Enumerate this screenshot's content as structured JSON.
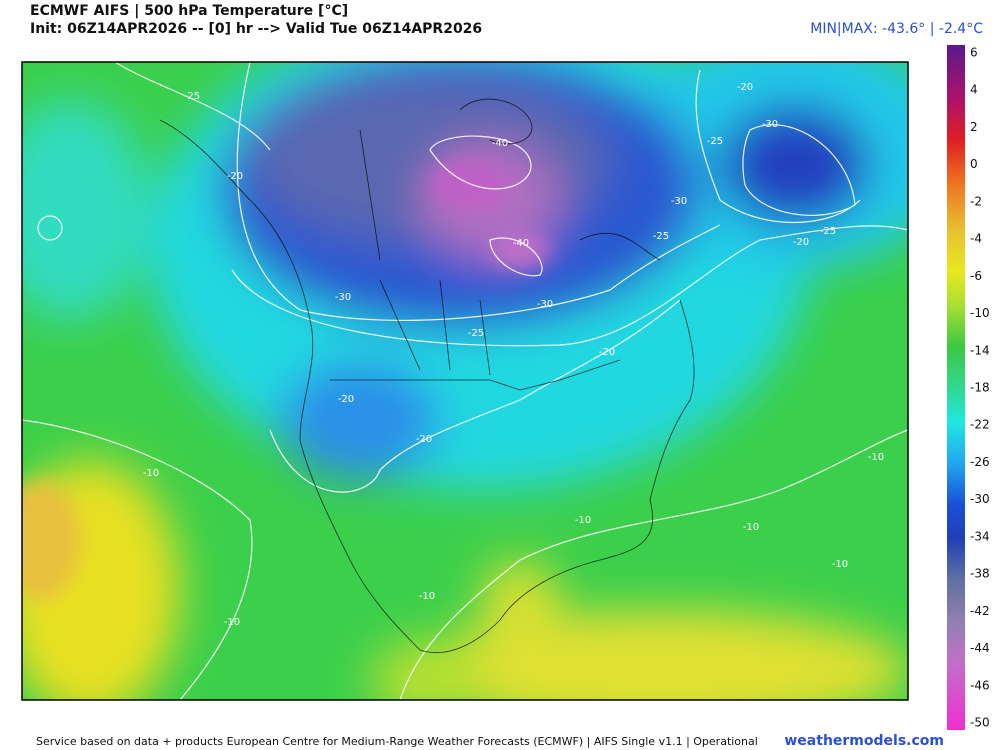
{
  "header": {
    "title": "ECMWF AIFS | 500 hPa Temperature [°C]",
    "subtitle": "Init: 06Z14APR2026 -- [0] hr --> Valid Tue 06Z14APR2026",
    "minmax": "MIN|MAX: -43.6° | -2.4°C"
  },
  "map": {
    "contour_labels": [
      "-25",
      "-20",
      "-40",
      "-40",
      "-30",
      "-30",
      "-25",
      "-20",
      "-25",
      "-30",
      "-25",
      "-20",
      "-30",
      "-25",
      "-20",
      "-20",
      "-20",
      "-10",
      "-10",
      "-10",
      "-10",
      "-10",
      "-10",
      "-10"
    ]
  },
  "colorbar": {
    "labels": [
      "6",
      "4",
      "2",
      "0",
      "-2",
      "-4",
      "-6",
      "-10",
      "-14",
      "-18",
      "-22",
      "-26",
      "-30",
      "-34",
      "-38",
      "-42",
      "-44",
      "-46",
      "-50"
    ]
  },
  "footer": {
    "credit": "Service based on data + products European Centre for Medium-Range Weather Forecasts (ECMWF) | AIFS Single v1.1 | Operational",
    "site": "weathermodels.com"
  }
}
